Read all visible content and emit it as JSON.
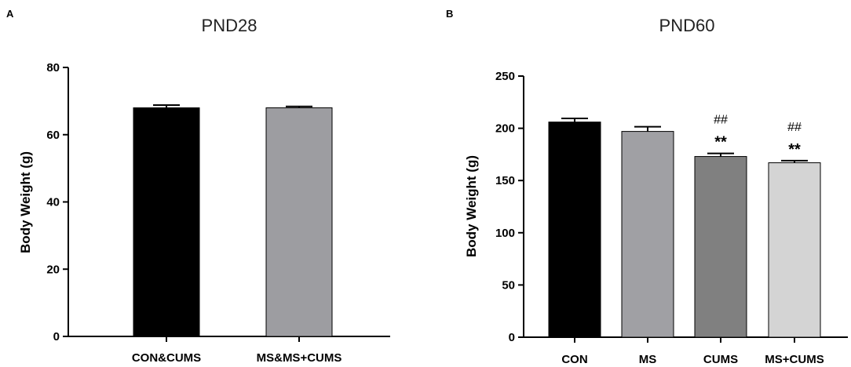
{
  "chart_data": [
    {
      "type": "bar",
      "panel": "A",
      "title": "PND28",
      "ylabel": "Body Weight (g)",
      "xlabel": "",
      "ylim": [
        0,
        80
      ],
      "yticks": [
        0,
        20,
        40,
        60,
        80
      ],
      "categories": [
        "CON&CUMS",
        "MS&MS+CUMS"
      ],
      "values": [
        68,
        68
      ],
      "errors": [
        0.8,
        0.4
      ],
      "colors": [
        "#000000",
        "#9d9da1"
      ],
      "annotations": [
        [],
        []
      ],
      "grid": false,
      "legend": "none"
    },
    {
      "type": "bar",
      "panel": "B",
      "title": "PND60",
      "ylabel": "Body Weight (g)",
      "xlabel": "",
      "ylim": [
        0,
        250
      ],
      "yticks": [
        0,
        50,
        100,
        150,
        200,
        250
      ],
      "categories": [
        "CON",
        "MS",
        "CUMS",
        "MS+CUMS"
      ],
      "values": [
        206,
        197,
        173,
        167
      ],
      "errors": [
        3.5,
        4.5,
        3,
        2
      ],
      "colors": [
        "#000000",
        "#a0a0a4",
        "#808080",
        "#d4d4d4"
      ],
      "annotations": [
        [],
        [],
        [
          "##",
          "**"
        ],
        [
          "##",
          "**"
        ]
      ],
      "grid": false,
      "legend": "none"
    }
  ]
}
